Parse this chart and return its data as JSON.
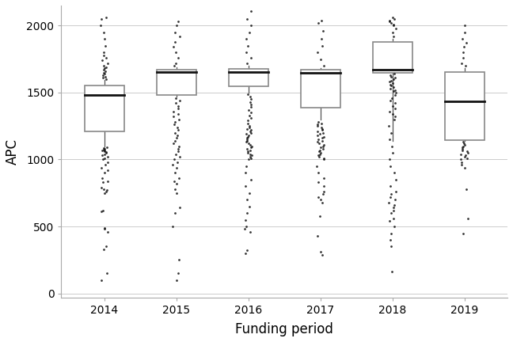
{
  "title": "",
  "xlabel": "Funding period",
  "ylabel": "APC",
  "years": [
    "2014",
    "2015",
    "2016",
    "2017",
    "2018",
    "2019"
  ],
  "xlim": [
    0.4,
    6.6
  ],
  "ylim": [
    -30,
    2150
  ],
  "yticks": [
    0,
    500,
    1000,
    1500,
    2000
  ],
  "background_color": "#ffffff",
  "grid_color": "#cccccc",
  "box_color": "#888888",
  "median_color": "#111111",
  "whisker_color": "#555555",
  "outlier_color": "#111111",
  "boxes": [
    {
      "year": 1,
      "q1": 1210,
      "median": 1480,
      "q3": 1555,
      "whisker_low": 1095,
      "whisker_high": 1596,
      "outliers": [
        100,
        150,
        330,
        350,
        460,
        480,
        490,
        610,
        620,
        750,
        760,
        770,
        780,
        790,
        830,
        840,
        860,
        900,
        920,
        940,
        960,
        980,
        1000,
        1010,
        1020,
        1030,
        1040,
        1050,
        1055,
        1060,
        1065,
        1070,
        1075,
        1080,
        1085,
        1090,
        1600,
        1610,
        1620,
        1630,
        1640,
        1650,
        1660,
        1670,
        1680,
        1690,
        1700,
        1720,
        1740,
        1760,
        1780,
        1800,
        1850,
        1900,
        1950,
        2000,
        2050,
        2060
      ]
    },
    {
      "year": 2,
      "q1": 1480,
      "median": 1652,
      "q3": 1672,
      "whisker_low": 1470,
      "whisker_high": 1690,
      "outliers": [
        100,
        150,
        250,
        500,
        600,
        640,
        750,
        780,
        820,
        840,
        860,
        900,
        940,
        960,
        980,
        1000,
        1020,
        1040,
        1060,
        1080,
        1100,
        1120,
        1140,
        1160,
        1180,
        1200,
        1220,
        1240,
        1260,
        1280,
        1300,
        1320,
        1340,
        1360,
        1380,
        1400,
        1420,
        1440,
        1460,
        1700,
        1720,
        1760,
        1800,
        1840,
        1880,
        1920,
        1950,
        2000,
        2030
      ]
    },
    {
      "year": 3,
      "q1": 1548,
      "median": 1655,
      "q3": 1675,
      "whisker_low": 1500,
      "whisker_high": 1700,
      "outliers": [
        300,
        320,
        460,
        480,
        500,
        550,
        600,
        650,
        700,
        750,
        800,
        850,
        900,
        950,
        1000,
        1010,
        1020,
        1030,
        1040,
        1050,
        1060,
        1070,
        1080,
        1090,
        1100,
        1110,
        1120,
        1130,
        1140,
        1150,
        1160,
        1170,
        1180,
        1190,
        1200,
        1210,
        1220,
        1230,
        1240,
        1250,
        1270,
        1290,
        1310,
        1330,
        1350,
        1370,
        1390,
        1410,
        1430,
        1450,
        1470,
        1490,
        1720,
        1760,
        1800,
        1850,
        1900,
        1950,
        2000,
        2050,
        2110
      ]
    },
    {
      "year": 4,
      "q1": 1385,
      "median": 1650,
      "q3": 1668,
      "whisker_low": 1300,
      "whisker_high": 1680,
      "outliers": [
        290,
        310,
        430,
        580,
        680,
        700,
        720,
        740,
        760,
        800,
        830,
        860,
        900,
        950,
        1000,
        1010,
        1020,
        1030,
        1040,
        1050,
        1060,
        1070,
        1080,
        1090,
        1100,
        1110,
        1120,
        1130,
        1140,
        1150,
        1160,
        1170,
        1180,
        1190,
        1200,
        1210,
        1220,
        1230,
        1240,
        1250,
        1260,
        1270,
        1280,
        1700,
        1750,
        1800,
        1850,
        1900,
        1960,
        2020,
        2040
      ]
    },
    {
      "year": 5,
      "q1": 1650,
      "median": 1668,
      "q3": 1880,
      "whisker_low": 1140,
      "whisker_high": 1900,
      "outliers": [
        165,
        350,
        400,
        450,
        500,
        540,
        560,
        600,
        620,
        640,
        660,
        680,
        700,
        720,
        740,
        760,
        800,
        850,
        900,
        950,
        1000,
        1050,
        1100,
        1150,
        1200,
        1250,
        1300,
        1320,
        1340,
        1360,
        1380,
        1400,
        1420,
        1440,
        1460,
        1480,
        1500,
        1510,
        1520,
        1530,
        1540,
        1550,
        1560,
        1570,
        1580,
        1590,
        1600,
        1610,
        1620,
        1630,
        1640,
        1920,
        1950,
        1980,
        2000,
        2010,
        2020,
        2030,
        2040,
        2050,
        2060
      ]
    },
    {
      "year": 6,
      "q1": 1145,
      "median": 1432,
      "q3": 1653,
      "whisker_low": 1140,
      "whisker_high": 1680,
      "outliers": [
        445,
        560,
        780,
        940,
        960,
        980,
        1000,
        1010,
        1020,
        1030,
        1040,
        1050,
        1060,
        1070,
        1080,
        1090,
        1100,
        1110,
        1120,
        1130,
        1700,
        1720,
        1760,
        1800,
        1840,
        1870,
        1900,
        1950,
        2000
      ]
    }
  ]
}
